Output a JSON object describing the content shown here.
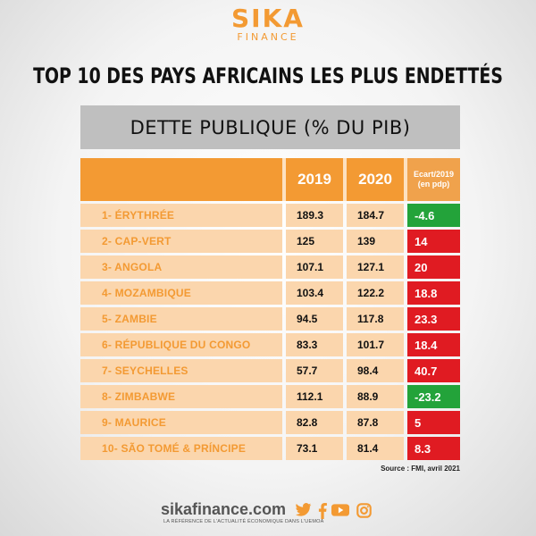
{
  "logo": {
    "main": "SIKA",
    "sub": "FINANCE"
  },
  "title": "TOP 10 DES PAYS AFRICAINS LES PLUS ENDETTÉS",
  "subtitle": "DETTE PUBLIQUE (% DU PIB)",
  "colors": {
    "accent": "#f39a33",
    "row_bg": "#fbd6ad",
    "positive": "#e01b22",
    "negative": "#23a33a",
    "band": "#bfbfbf"
  },
  "chart_data": {
    "type": "table",
    "title": "TOP 10 DES PAYS AFRICAINS LES PLUS ENDETTÉS",
    "subtitle": "DETTE PUBLIQUE (% DU PIB)",
    "columns": [
      "2019",
      "2020",
      "Ecart/2019 (en pdp)"
    ],
    "header_ecart_line1": "Ecart/2019",
    "header_ecart_line2": "(en pdp)",
    "rows": [
      {
        "label": "1- ÉRYTHRÉE",
        "y2019": "189.3",
        "y2020": "184.7",
        "ecart": "-4.6"
      },
      {
        "label": "2- CAP-VERT",
        "y2019": "125",
        "y2020": "139",
        "ecart": "14"
      },
      {
        "label": "3- ANGOLA",
        "y2019": "107.1",
        "y2020": "127.1",
        "ecart": "20"
      },
      {
        "label": "4- MOZAMBIQUE",
        "y2019": "103.4",
        "y2020": "122.2",
        "ecart": "18.8"
      },
      {
        "label": "5- ZAMBIE",
        "y2019": "94.5",
        "y2020": "117.8",
        "ecart": "23.3"
      },
      {
        "label": "6- RÉPUBLIQUE DU CONGO",
        "y2019": "83.3",
        "y2020": "101.7",
        "ecart": "18.4"
      },
      {
        "label": "7- SEYCHELLES",
        "y2019": "57.7",
        "y2020": "98.4",
        "ecart": "40.7"
      },
      {
        "label": "8- ZIMBABWE",
        "y2019": "112.1",
        "y2020": "88.9",
        "ecart": "-23.2"
      },
      {
        "label": "9- MAURICE",
        "y2019": "82.8",
        "y2020": "87.8",
        "ecart": "5"
      },
      {
        "label": "10- SÃO TOMÉ & PRÍNCIPE",
        "y2019": "73.1",
        "y2020": "81.4",
        "ecart": "8.3"
      }
    ]
  },
  "source": "Source : FMI, avril 2021",
  "footer": {
    "site": "sikafinance.com",
    "tagline": "LA RÉFÉRENCE DE L'ACTUALITÉ ÉCONOMIQUE DANS L'UEMOA",
    "social_icons": [
      "twitter-icon",
      "facebook-icon",
      "youtube-icon",
      "instagram-icon"
    ]
  }
}
